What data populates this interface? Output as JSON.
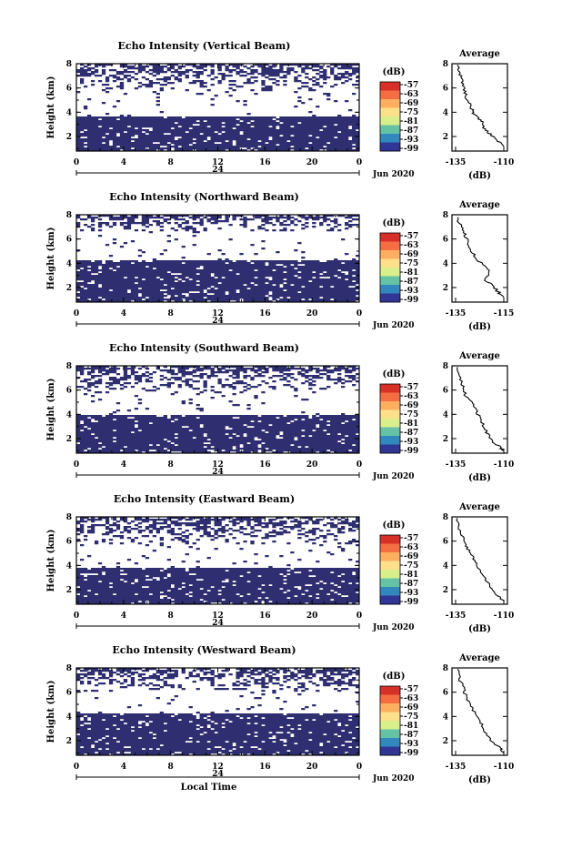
{
  "chart_data": [
    {
      "type": "heatmap",
      "title": "Echo Intensity (Vertical Beam)",
      "ylabel": "Height (km)",
      "xticks": [
        "0",
        "4",
        "8",
        "12",
        "16",
        "20",
        "0"
      ],
      "date_tick": "24",
      "date_label": "Jun 2020",
      "yticks": [
        "2",
        "4",
        "6",
        "8"
      ],
      "xlim": [
        0,
        24
      ],
      "ylim": [
        0.8,
        8.0
      ],
      "colorbar": {
        "title": "(dB)",
        "labels": [
          "-57",
          "-63",
          "-69",
          "-75",
          "-81",
          "-87",
          "-93",
          "-99"
        ]
      },
      "profile": {
        "title": "Average",
        "xlabel": "(dB)",
        "xticks": [
          "-135",
          "-110"
        ],
        "xlim": [
          -135,
          -110
        ],
        "ylim": [
          0.8,
          8.0
        ],
        "yticks": [
          "2",
          "4",
          "6",
          "8"
        ],
        "points": [
          [
            -134,
            7.9
          ],
          [
            -133,
            7.3
          ],
          [
            -132,
            6.8
          ],
          [
            -131,
            6.2
          ],
          [
            -130,
            5.6
          ],
          [
            -129,
            5.0
          ],
          [
            -127,
            4.5
          ],
          [
            -126,
            4.0
          ],
          [
            -124,
            3.6
          ],
          [
            -121,
            3.2
          ],
          [
            -120,
            2.6
          ],
          [
            -117,
            2.2
          ],
          [
            -113,
            1.6
          ],
          [
            -110,
            1.2
          ]
        ]
      },
      "layers": {
        "upper": [
          5.8,
          8.0
        ],
        "lower": [
          1.0,
          3.6
        ]
      }
    },
    {
      "type": "heatmap",
      "title": "Echo Intensity (Northward Beam)",
      "ylabel": "Height (km)",
      "xticks": [
        "0",
        "4",
        "8",
        "12",
        "16",
        "20",
        "0"
      ],
      "date_tick": "24",
      "date_label": "Jun 2020",
      "yticks": [
        "2",
        "4",
        "6",
        "8"
      ],
      "xlim": [
        0,
        24
      ],
      "ylim": [
        0.8,
        8.0
      ],
      "colorbar": {
        "title": "(dB)",
        "labels": [
          "-57",
          "-63",
          "-69",
          "-75",
          "-81",
          "-87",
          "-93",
          "-99"
        ]
      },
      "profile": {
        "title": "Average",
        "xlabel": "(dB)",
        "xticks": [
          "-135",
          "-115"
        ],
        "xlim": [
          -135,
          -115
        ],
        "ylim": [
          0.8,
          8.0
        ],
        "yticks": [
          "2",
          "4",
          "6",
          "8"
        ],
        "points": [
          [
            -134,
            7.8
          ],
          [
            -133,
            7.0
          ],
          [
            -131,
            6.4
          ],
          [
            -130,
            5.8
          ],
          [
            -129,
            5.2
          ],
          [
            -127,
            4.6
          ],
          [
            -124,
            3.9
          ],
          [
            -121,
            3.3
          ],
          [
            -123,
            2.6
          ],
          [
            -120,
            2.2
          ],
          [
            -117,
            1.6
          ],
          [
            -115,
            1.2
          ]
        ]
      },
      "layers": {
        "upper": [
          6.6,
          8.0
        ],
        "lower": [
          1.0,
          4.2
        ]
      }
    },
    {
      "type": "heatmap",
      "title": "Echo Intensity (Southward Beam)",
      "ylabel": "Height (km)",
      "xticks": [
        "0",
        "4",
        "8",
        "12",
        "16",
        "20",
        "0"
      ],
      "date_tick": "24",
      "date_label": "Jun 2020",
      "yticks": [
        "2",
        "4",
        "6",
        "8"
      ],
      "xlim": [
        0,
        24
      ],
      "ylim": [
        0.8,
        8.0
      ],
      "colorbar": {
        "title": "(dB)",
        "labels": [
          "-57",
          "-63",
          "-69",
          "-75",
          "-81",
          "-87",
          "-93",
          "-99"
        ]
      },
      "profile": {
        "title": "Average",
        "xlabel": "(dB)",
        "xticks": [
          "-135",
          "-110"
        ],
        "xlim": [
          -135,
          -110
        ],
        "ylim": [
          0.8,
          8.0
        ],
        "yticks": [
          "2",
          "4",
          "6",
          "8"
        ],
        "points": [
          [
            -134,
            7.9
          ],
          [
            -133,
            7.0
          ],
          [
            -131,
            6.3
          ],
          [
            -130,
            5.6
          ],
          [
            -127,
            5.0
          ],
          [
            -125,
            4.5
          ],
          [
            -123,
            3.9
          ],
          [
            -121,
            3.2
          ],
          [
            -119,
            2.5
          ],
          [
            -116,
            1.8
          ],
          [
            -112,
            1.3
          ],
          [
            -110,
            1.0
          ]
        ]
      },
      "layers": {
        "upper": [
          5.8,
          8.0
        ],
        "lower": [
          1.0,
          3.9
        ]
      }
    },
    {
      "type": "heatmap",
      "title": "Echo Intensity (Eastward Beam)",
      "ylabel": "Height (km)",
      "xticks": [
        "0",
        "4",
        "8",
        "12",
        "16",
        "20",
        "0"
      ],
      "date_tick": "24",
      "date_label": "Jun 2020",
      "yticks": [
        "2",
        "4",
        "6",
        "8"
      ],
      "xlim": [
        0,
        24
      ],
      "ylim": [
        0.8,
        8.0
      ],
      "colorbar": {
        "title": "(dB)",
        "labels": [
          "-57",
          "-63",
          "-69",
          "-75",
          "-81",
          "-87",
          "-93",
          "-99"
        ]
      },
      "profile": {
        "title": "Average",
        "xlabel": "(dB)",
        "xticks": [
          "-135",
          "-110"
        ],
        "xlim": [
          -135,
          -110
        ],
        "ylim": [
          0.8,
          8.0
        ],
        "yticks": [
          "2",
          "4",
          "6",
          "8"
        ],
        "points": [
          [
            -134,
            7.9
          ],
          [
            -133,
            7.0
          ],
          [
            -131,
            6.2
          ],
          [
            -130,
            5.6
          ],
          [
            -127,
            5.0
          ],
          [
            -125,
            4.4
          ],
          [
            -123,
            3.8
          ],
          [
            -121,
            3.2
          ],
          [
            -118,
            2.5
          ],
          [
            -115,
            1.8
          ],
          [
            -112,
            1.3
          ],
          [
            -110,
            1.0
          ]
        ]
      },
      "layers": {
        "upper": [
          5.8,
          8.0
        ],
        "lower": [
          1.0,
          3.8
        ]
      }
    },
    {
      "type": "heatmap",
      "title": "Echo Intensity (Westward Beam)",
      "ylabel": "Height (km)",
      "xticks": [
        "0",
        "4",
        "8",
        "12",
        "16",
        "20",
        "0"
      ],
      "date_tick": "24",
      "date_label": "Jun 2020",
      "yticks": [
        "2",
        "4",
        "6",
        "8"
      ],
      "xlim": [
        0,
        24
      ],
      "ylim": [
        0.8,
        8.0
      ],
      "colorbar": {
        "title": "(dB)",
        "labels": [
          "-57",
          "-63",
          "-69",
          "-75",
          "-81",
          "-87",
          "-93",
          "-99"
        ]
      },
      "profile": {
        "title": "Average",
        "xlabel": "(dB)",
        "xticks": [
          "-135",
          "-110"
        ],
        "xlim": [
          -135,
          -110
        ],
        "ylim": [
          0.8,
          8.0
        ],
        "yticks": [
          "2",
          "4",
          "6",
          "8"
        ],
        "points": [
          [
            -134,
            7.9
          ],
          [
            -133,
            7.1
          ],
          [
            -131,
            6.4
          ],
          [
            -130,
            5.8
          ],
          [
            -128,
            5.1
          ],
          [
            -126,
            4.5
          ],
          [
            -123,
            3.9
          ],
          [
            -121,
            3.2
          ],
          [
            -119,
            2.6
          ],
          [
            -116,
            1.9
          ],
          [
            -112,
            1.4
          ],
          [
            -110,
            1.0
          ]
        ]
      },
      "layers": {
        "upper": [
          6.0,
          8.0
        ],
        "lower": [
          1.0,
          4.2
        ]
      }
    }
  ],
  "footer": {
    "xlabel": "Local Time"
  },
  "colors": {
    "fill": "#2e2e70",
    "colormap": [
      "#d73027",
      "#f46d43",
      "#fdae61",
      "#fee08b",
      "#d9ef8b",
      "#66c2a5",
      "#3288bd",
      "#313695"
    ]
  }
}
